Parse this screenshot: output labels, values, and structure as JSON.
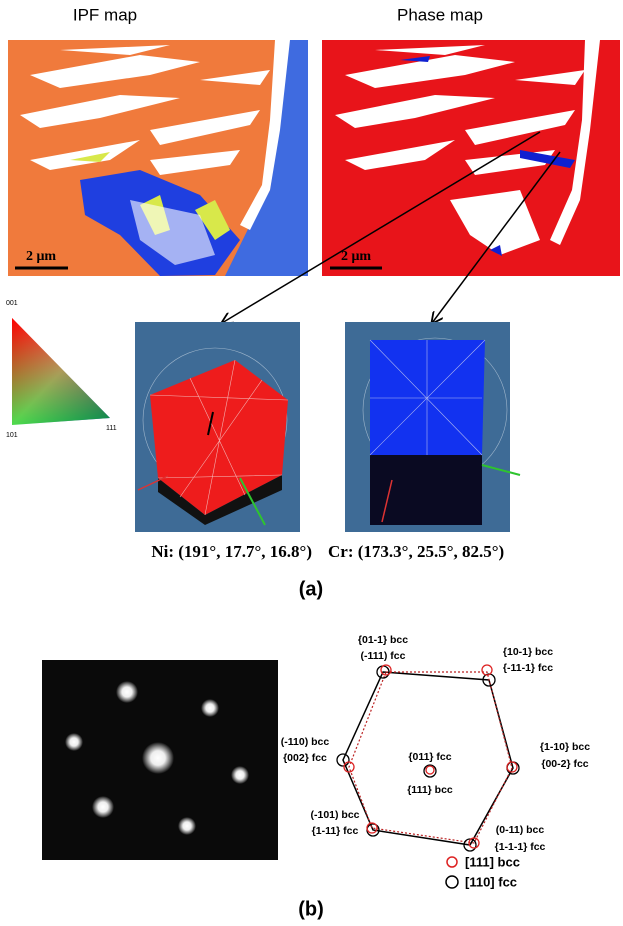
{
  "panel_a": {
    "ipf_title": "IPF map",
    "phase_title": "Phase map",
    "scale_bars": [
      "2 μm",
      "2 μm"
    ],
    "triangle_labels": [
      "001",
      "101",
      "111"
    ],
    "orientations": [
      "Ni: (191°, 17.7°, 16.8°)",
      "Cr: (173.3°, 25.5°, 82.5°)"
    ],
    "label": "(a)"
  },
  "panel_b": {
    "spots": [
      [
        "{01-1} bcc",
        "(-111) fcc"
      ],
      [
        "{10-1} bcc",
        "{-11-1} fcc"
      ],
      [
        "(-110) bcc",
        "{002} fcc"
      ],
      [
        "{011} fcc",
        "{111} bcc"
      ],
      [
        "{1-10} bcc",
        "{00-2} fcc"
      ],
      [
        "(-101) bcc",
        "{1-11} fcc"
      ],
      [
        "(0-11) bcc",
        "{1-1-1} fcc"
      ]
    ],
    "legend": [
      "[111] bcc",
      "[110] fcc"
    ],
    "label": "(b)"
  }
}
